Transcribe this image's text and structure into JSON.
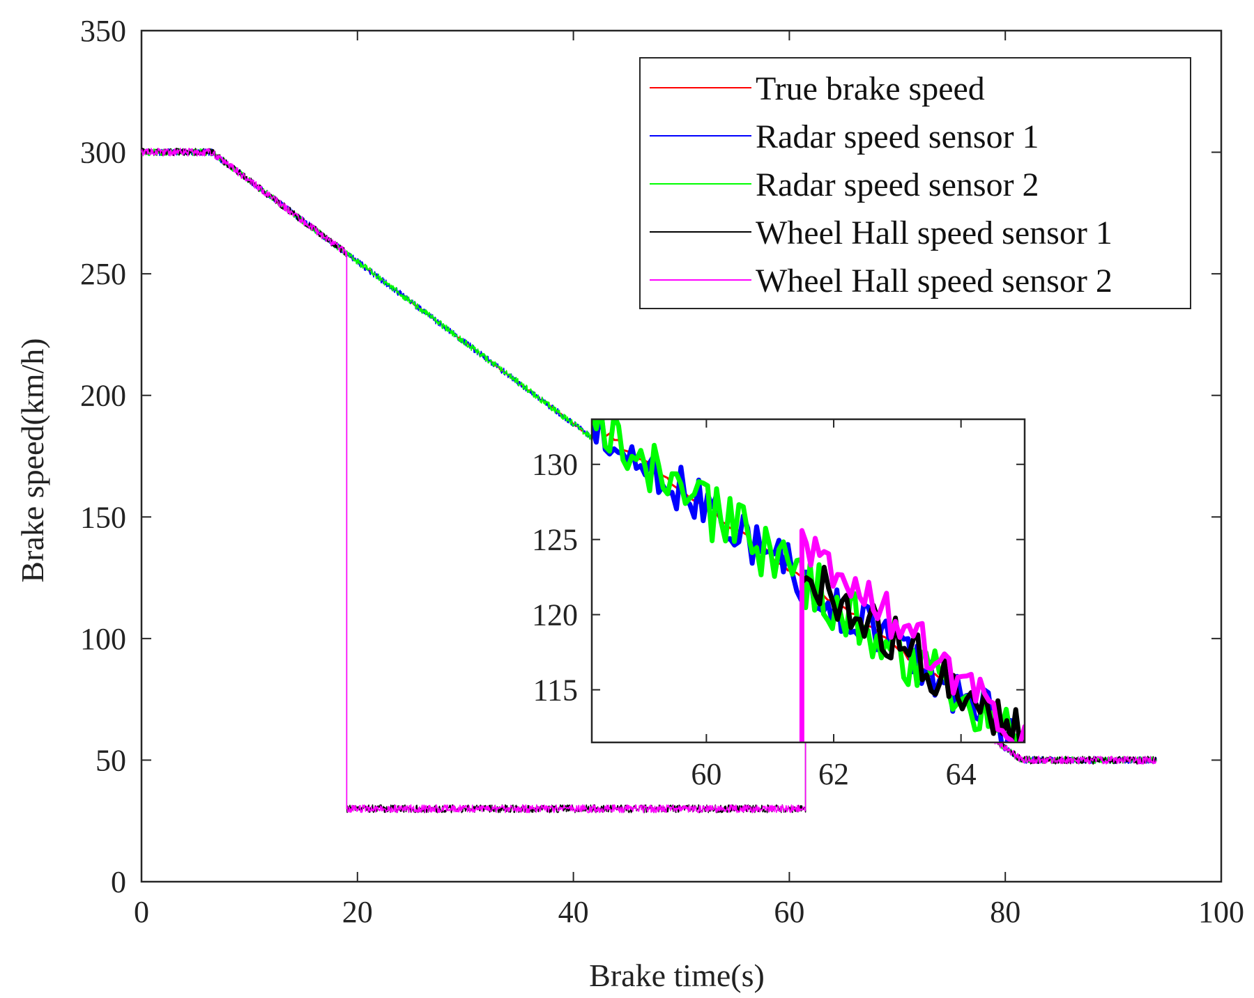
{
  "chart_data": [
    {
      "id": "main",
      "type": "line",
      "title": "",
      "xlabel": "Brake time(s)",
      "ylabel": "Brake speed(km/h)",
      "xlim": [
        0,
        100
      ],
      "ylim": [
        0,
        350
      ],
      "xticks": [
        0,
        20,
        40,
        60,
        80,
        100
      ],
      "yticks": [
        0,
        50,
        100,
        150,
        200,
        250,
        300,
        350
      ],
      "grid": false,
      "legend_position": "top-right",
      "series": [
        {
          "name": "True brake speed",
          "color": "#ff0000",
          "x": [
            0,
            6.5,
            81.5,
            94
          ],
          "y": [
            300,
            300,
            50,
            50
          ]
        },
        {
          "name": "Radar speed sensor 1",
          "color": "#0000ff",
          "x": [
            0,
            6.5,
            81.5,
            94
          ],
          "y": [
            300,
            300,
            50,
            50
          ]
        },
        {
          "name": "Radar speed sensor 2",
          "color": "#00ff00",
          "x": [
            0,
            6.5,
            81.5,
            94
          ],
          "y": [
            300,
            300,
            50,
            50
          ]
        },
        {
          "name": "Wheel Hall speed sensor 1",
          "color": "#000000",
          "x": [
            0,
            6.5,
            19,
            19,
            61.5,
            61.5,
            81.5,
            94
          ],
          "y": [
            300,
            300,
            258.3,
            30,
            30,
            116.7,
            50,
            50
          ]
        },
        {
          "name": "Wheel Hall speed sensor 2",
          "color": "#ff00ff",
          "x": [
            0,
            6.5,
            19,
            19,
            61.5,
            61.5,
            81.5,
            94
          ],
          "y": [
            300,
            300,
            258.3,
            30,
            30,
            116.7,
            50,
            50
          ]
        }
      ]
    },
    {
      "id": "inset",
      "type": "line",
      "title": "",
      "xlabel": "",
      "ylabel": "",
      "xlim": [
        58.2,
        65
      ],
      "ylim": [
        111.5,
        133
      ],
      "xticks": [
        60,
        62,
        64
      ],
      "yticks": [
        115,
        120,
        125,
        130
      ],
      "grid": false,
      "series": [
        {
          "name": "True brake speed",
          "color": "#ff0000",
          "x": [
            58.2,
            65
          ],
          "y": [
            132.7,
            111.5
          ]
        },
        {
          "name": "Radar speed sensor 1",
          "color": "#0000ff",
          "x": [
            58.2,
            65
          ],
          "y": [
            132.7,
            111.5
          ]
        },
        {
          "name": "Radar speed sensor 2",
          "color": "#00ff00",
          "x": [
            58.2,
            65
          ],
          "y": [
            132.7,
            111.5
          ]
        },
        {
          "name": "Wheel Hall speed sensor 1",
          "color": "#000000",
          "x": [
            61.5,
            65
          ],
          "y": [
            123.0,
            111.8
          ]
        },
        {
          "name": "Wheel Hall speed sensor 2",
          "color": "#ff00ff",
          "x": [
            61.5,
            61.5,
            65
          ],
          "y": [
            111.5,
            125.0,
            112.0
          ]
        }
      ]
    }
  ]
}
